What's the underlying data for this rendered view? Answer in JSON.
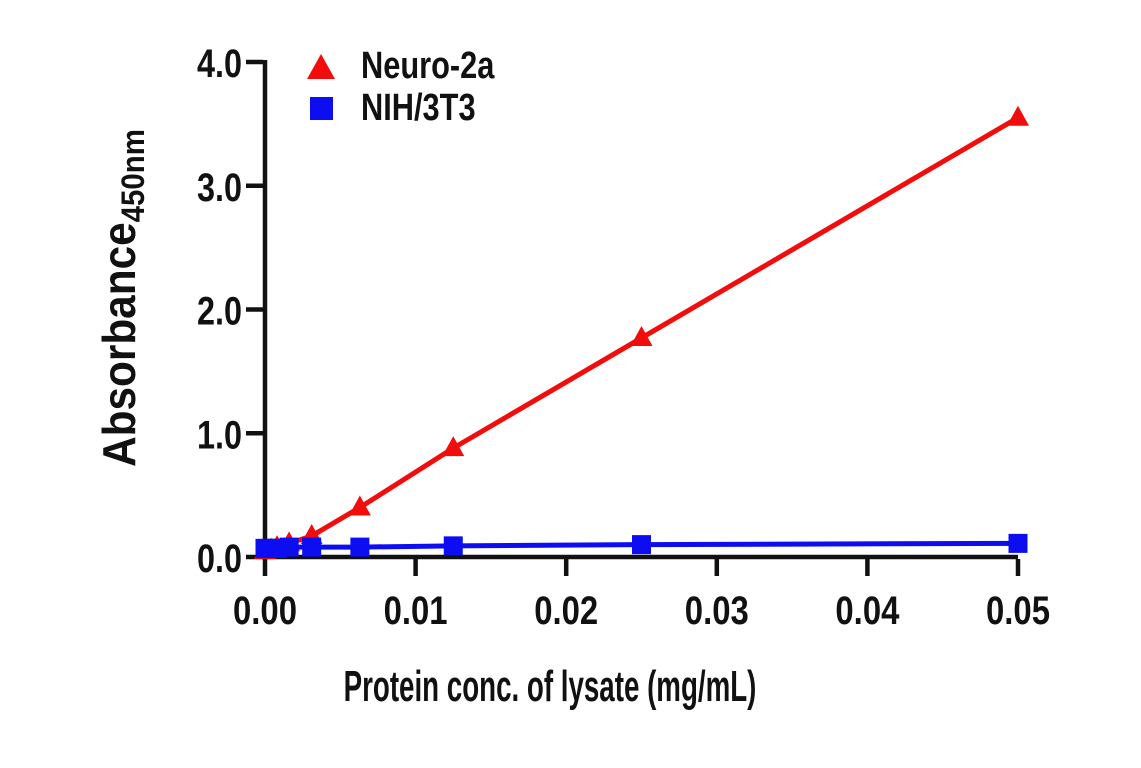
{
  "figure": {
    "background": "#ffffff",
    "text_color": "#111111",
    "axis_color": "#111111"
  },
  "chart_data": {
    "type": "line",
    "title": "",
    "xlabel": "Protein conc. of lysate (mg/mL)",
    "ylabel": "Absorbance",
    "ylabel_subscript": "450nm",
    "xlim": [
      0,
      0.05
    ],
    "ylim": [
      0,
      4.0
    ],
    "grid": false,
    "legend_position": "top-left-inside",
    "xticks": {
      "values": [
        0,
        0.01,
        0.02,
        0.03,
        0.04,
        0.05
      ],
      "labels": [
        "0.00",
        "0.01",
        "0.02",
        "0.03",
        "0.04",
        "0.05"
      ]
    },
    "yticks": {
      "values": [
        0,
        1,
        2,
        3,
        4
      ],
      "labels": [
        "0.0",
        "1.0",
        "2.0",
        "3.0",
        "4.0"
      ]
    },
    "series": [
      {
        "name": "Neuro-2a",
        "color": "#f20d0d",
        "marker": "triangle",
        "x": [
          0,
          0.0004,
          0.0008,
          0.0016,
          0.0031,
          0.0063,
          0.0125,
          0.025,
          0.05
        ],
        "y": [
          0.05,
          0.06,
          0.08,
          0.11,
          0.17,
          0.4,
          0.88,
          1.77,
          3.55
        ]
      },
      {
        "name": "NIH/3T3",
        "color": "#0d0df2",
        "marker": "square",
        "x": [
          0,
          0.0004,
          0.0008,
          0.0016,
          0.0031,
          0.0063,
          0.0125,
          0.025,
          0.05
        ],
        "y": [
          0.07,
          0.07,
          0.07,
          0.08,
          0.08,
          0.08,
          0.09,
          0.1,
          0.11
        ]
      }
    ]
  }
}
